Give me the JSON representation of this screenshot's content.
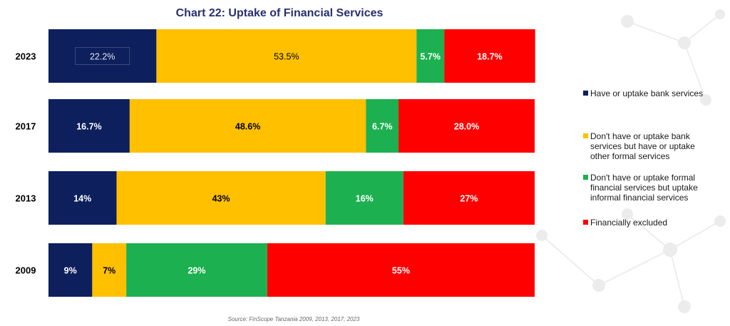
{
  "chart_data": {
    "type": "bar",
    "orientation": "horizontal",
    "stacked": true,
    "title": "Chart 22: Uptake of Financial Services",
    "source": "Source: FinScope Tanzania 2009, 2013, 2017, 2023",
    "categories": [
      "2023",
      "2017",
      "2013",
      "2009"
    ],
    "series": [
      {
        "name": "Have or uptake bank services",
        "color": "#0d1f5c",
        "values": [
          22.2,
          16.7,
          14,
          9
        ],
        "labels": [
          "22.2%",
          "16.7%",
          "14%",
          "9%"
        ]
      },
      {
        "name": "Don't have or uptake bank services but have or uptake other formal services",
        "color": "#ffc000",
        "values": [
          53.5,
          48.6,
          43,
          7
        ],
        "labels": [
          "53.5%",
          "48.6%",
          "43%",
          "7%"
        ]
      },
      {
        "name": "Don't have or uptake formal financial services but uptake informal financial services",
        "color": "#1db050",
        "values": [
          5.7,
          6.7,
          16,
          29
        ],
        "labels": [
          "5.7%",
          "6.7%",
          "16%",
          "29%"
        ]
      },
      {
        "name": "Financially excluded",
        "color": "#ff0000",
        "values": [
          18.7,
          28.0,
          27,
          55
        ],
        "labels": [
          "18.7%",
          "28.0%",
          "27%",
          "55%"
        ]
      }
    ],
    "xlim": [
      0,
      100
    ],
    "grid": false,
    "legend_position": "right"
  }
}
